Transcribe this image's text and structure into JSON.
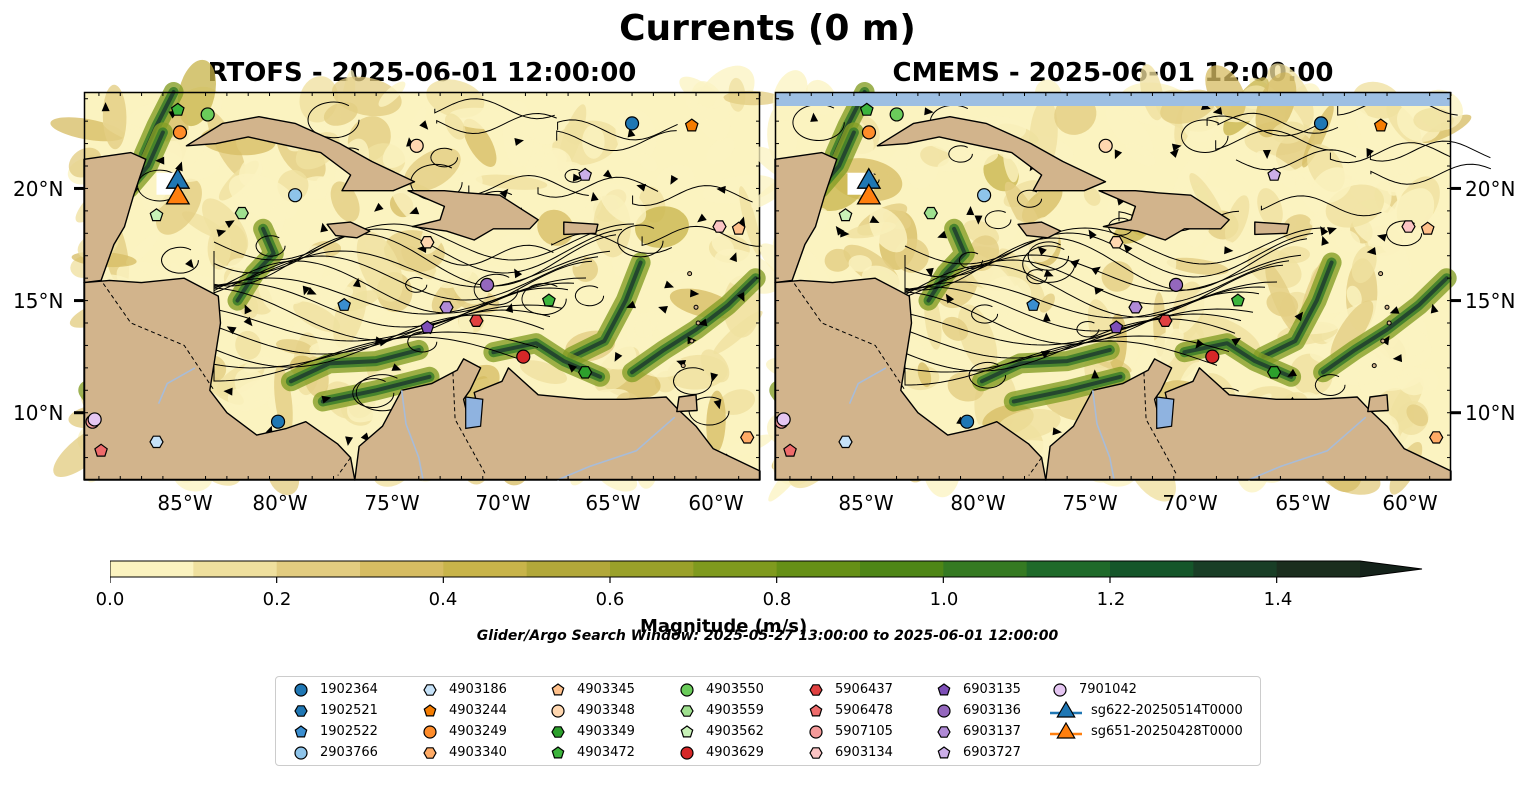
{
  "figure": {
    "title": "Currents (0 m)",
    "left_panel_title": "RTOFS - 2025-06-01 12:00:00",
    "right_panel_title": "CMEMS - 2025-06-01 12:00:00",
    "search_window": "Glider/Argo Search Window: 2025-05-27 13:00:00 to 2025-06-01 12:00:00"
  },
  "map_extent": {
    "lon_min": -89.7,
    "lon_max": -58.0,
    "lat_min": 7.0,
    "lat_max": 24.3
  },
  "axes": {
    "lon_ticks": [
      "85°W",
      "80°W",
      "75°W",
      "70°W",
      "65°W",
      "60°W"
    ],
    "lon_tick_values": [
      -85,
      -80,
      -75,
      -70,
      -65,
      -60
    ],
    "lat_ticks": [
      "20°N",
      "15°N",
      "10°N"
    ],
    "lat_tick_values": [
      20,
      15,
      10
    ]
  },
  "colorbar": {
    "label": "Magnitude (m/s)",
    "ticks": [
      "0.0",
      "0.2",
      "0.4",
      "0.6",
      "0.8",
      "1.0",
      "1.2",
      "1.4"
    ],
    "tick_values": [
      0.0,
      0.2,
      0.4,
      0.6,
      0.8,
      1.0,
      1.2,
      1.4
    ],
    "min": 0.0,
    "max": 1.5,
    "extend": "max",
    "colors": [
      "#fbf3c0",
      "#efe09e",
      "#e2cc80",
      "#d6bc62",
      "#c8b44a",
      "#b2a83a",
      "#9aa12a",
      "#7f9a1e",
      "#669016",
      "#4e8616",
      "#357a22",
      "#1f6a2a",
      "#15562a",
      "#193e26",
      "#1b2e1e"
    ],
    "extend_color": "#14221a"
  },
  "colors": {
    "land": "#d2b48c",
    "lake": "#8fb3e0",
    "river": "#a8bcd8",
    "no_data": "#9dbfe3",
    "ocean_low": "#fbf3c0"
  },
  "legend": {
    "columns": [
      [
        {
          "name": "1902364",
          "marker": "circle",
          "color": "#1f77b4"
        },
        {
          "name": "1902521",
          "marker": "hexagon",
          "color": "#1f77b4"
        },
        {
          "name": "1902522",
          "marker": "pentagon",
          "color": "#3a8ed0"
        },
        {
          "name": "2903766",
          "marker": "circle",
          "color": "#8ec4ea"
        }
      ],
      [
        {
          "name": "4903186",
          "marker": "hexagon",
          "color": "#c6e2f8"
        },
        {
          "name": "4903244",
          "marker": "pentagon",
          "color": "#f57c00"
        },
        {
          "name": "4903249",
          "marker": "circle",
          "color": "#ff8c2a"
        },
        {
          "name": "4903340",
          "marker": "hexagon",
          "color": "#ffab66"
        }
      ],
      [
        {
          "name": "4903345",
          "marker": "pentagon",
          "color": "#ffc08a"
        },
        {
          "name": "4903348",
          "marker": "circle",
          "color": "#ffd7b0"
        },
        {
          "name": "4903349",
          "marker": "hexagon",
          "color": "#2ca02c"
        },
        {
          "name": "4903472",
          "marker": "pentagon",
          "color": "#3cb43c"
        }
      ],
      [
        {
          "name": "4903550",
          "marker": "circle",
          "color": "#6acc5a"
        },
        {
          "name": "4903559",
          "marker": "hexagon",
          "color": "#9fe08f"
        },
        {
          "name": "4903562",
          "marker": "pentagon",
          "color": "#c8f2b8"
        },
        {
          "name": "4903629",
          "marker": "circle",
          "color": "#d62728"
        }
      ],
      [
        {
          "name": "5906437",
          "marker": "hexagon",
          "color": "#e04040"
        },
        {
          "name": "5906478",
          "marker": "pentagon",
          "color": "#ee6b6b"
        },
        {
          "name": "5907105",
          "marker": "circle",
          "color": "#f49a9a"
        },
        {
          "name": "6903134",
          "marker": "hexagon",
          "color": "#fbc4c4"
        }
      ],
      [
        {
          "name": "6903135",
          "marker": "pentagon",
          "color": "#7e4fb8"
        },
        {
          "name": "6903136",
          "marker": "circle",
          "color": "#9467bd"
        },
        {
          "name": "6903137",
          "marker": "hexagon",
          "color": "#b08ad6"
        },
        {
          "name": "6903727",
          "marker": "pentagon",
          "color": "#cbaee8"
        }
      ],
      [
        {
          "name": "7901042",
          "marker": "circle",
          "color": "#e5c6f2"
        },
        {
          "name": "sg622-20250514T0000",
          "marker": "triangle",
          "color": "#1f77b4"
        },
        {
          "name": "sg651-20250428T0000",
          "marker": "triangle",
          "color": "#ff7f0e"
        }
      ]
    ]
  },
  "glider_positions": [
    {
      "name": "sg622-20250514T0000",
      "lon": -85.3,
      "lat": 20.3
    },
    {
      "name": "sg651-20250428T0000",
      "lon": -85.3,
      "lat": 19.6
    }
  ],
  "float_positions": [
    {
      "lon": -64.0,
      "lat": 22.9,
      "color": "#1f77b4",
      "marker": "circle"
    },
    {
      "lon": -79.8,
      "lat": 19.7,
      "color": "#8ec4ea",
      "marker": "circle"
    },
    {
      "lon": -80.6,
      "lat": 9.6,
      "color": "#1f77b4",
      "marker": "circle"
    },
    {
      "lon": -77.5,
      "lat": 14.8,
      "color": "#3a8ed0",
      "marker": "pentagon"
    },
    {
      "lon": -86.3,
      "lat": 8.7,
      "color": "#c6e2f8",
      "marker": "hexagon"
    },
    {
      "lon": -61.2,
      "lat": 22.8,
      "color": "#f57c00",
      "marker": "pentagon"
    },
    {
      "lon": -85.2,
      "lat": 22.5,
      "color": "#ff8c2a",
      "marker": "circle"
    },
    {
      "lon": -58.6,
      "lat": 8.9,
      "color": "#ffab66",
      "marker": "hexagon"
    },
    {
      "lon": -59.0,
      "lat": 18.2,
      "color": "#ffc08a",
      "marker": "pentagon"
    },
    {
      "lon": -74.1,
      "lat": 21.9,
      "color": "#ffd7b0",
      "marker": "circle"
    },
    {
      "lon": -73.6,
      "lat": 17.6,
      "color": "#ffd7b0",
      "marker": "hexagon"
    },
    {
      "lon": -66.2,
      "lat": 11.8,
      "color": "#2ca02c",
      "marker": "hexagon"
    },
    {
      "lon": -85.3,
      "lat": 23.5,
      "color": "#3cb43c",
      "marker": "pentagon"
    },
    {
      "lon": -67.9,
      "lat": 15.0,
      "color": "#3cb43c",
      "marker": "pentagon"
    },
    {
      "lon": -83.9,
      "lat": 23.3,
      "color": "#6acc5a",
      "marker": "circle"
    },
    {
      "lon": -82.3,
      "lat": 18.9,
      "color": "#9fe08f",
      "marker": "hexagon"
    },
    {
      "lon": -86.3,
      "lat": 18.8,
      "color": "#c8f2b8",
      "marker": "pentagon"
    },
    {
      "lon": -69.1,
      "lat": 12.5,
      "color": "#d62728",
      "marker": "circle"
    },
    {
      "lon": -71.3,
      "lat": 14.1,
      "color": "#e04040",
      "marker": "hexagon"
    },
    {
      "lon": -88.9,
      "lat": 8.3,
      "color": "#ee6b6b",
      "marker": "pentagon"
    },
    {
      "lon": -89.3,
      "lat": 9.6,
      "color": "#f49a9a",
      "marker": "circle"
    },
    {
      "lon": -59.9,
      "lat": 18.3,
      "color": "#fbc4c4",
      "marker": "hexagon"
    },
    {
      "lon": -73.6,
      "lat": 13.8,
      "color": "#7e4fb8",
      "marker": "pentagon"
    },
    {
      "lon": -70.8,
      "lat": 15.7,
      "color": "#9467bd",
      "marker": "circle"
    },
    {
      "lon": -72.7,
      "lat": 14.7,
      "color": "#b08ad6",
      "marker": "hexagon"
    },
    {
      "lon": -66.2,
      "lat": 20.6,
      "color": "#cbaee8",
      "marker": "pentagon"
    },
    {
      "lon": -89.2,
      "lat": 9.7,
      "color": "#e5c6f2",
      "marker": "circle"
    }
  ]
}
